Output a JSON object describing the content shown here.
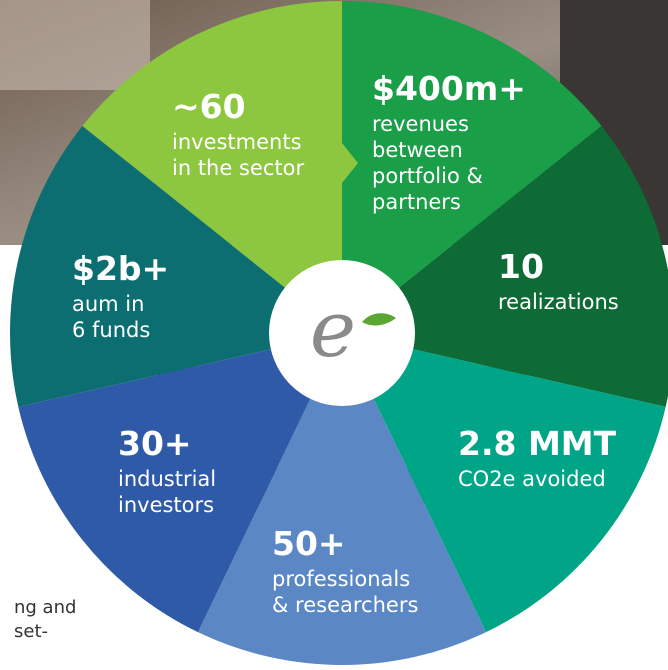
{
  "logo": {
    "text": "e"
  },
  "background_text": [
    "ng and",
    "set-"
  ],
  "segments": [
    {
      "headline": "$400m+",
      "lines": [
        "revenues",
        "between",
        "portfolio &",
        "partners"
      ],
      "color": "#1a9e47"
    },
    {
      "headline": "10",
      "lines": [
        "realizations"
      ],
      "color": "#0e6b35"
    },
    {
      "headline": "2.8 MMT",
      "lines": [
        "CO2e avoided"
      ],
      "color": "#00a587"
    },
    {
      "headline": "50+",
      "lines": [
        "professionals",
        "& researchers"
      ],
      "color": "#5b87c5"
    },
    {
      "headline": "30+",
      "lines": [
        "industrial",
        "investors"
      ],
      "color": "#2e5aa8"
    },
    {
      "headline": "$2b+",
      "lines": [
        "aum in",
        "6 funds"
      ],
      "color": "#0d6e72"
    },
    {
      "headline": "~60",
      "lines": [
        "investments",
        "in the sector"
      ],
      "color": "#8dc63f"
    }
  ]
}
